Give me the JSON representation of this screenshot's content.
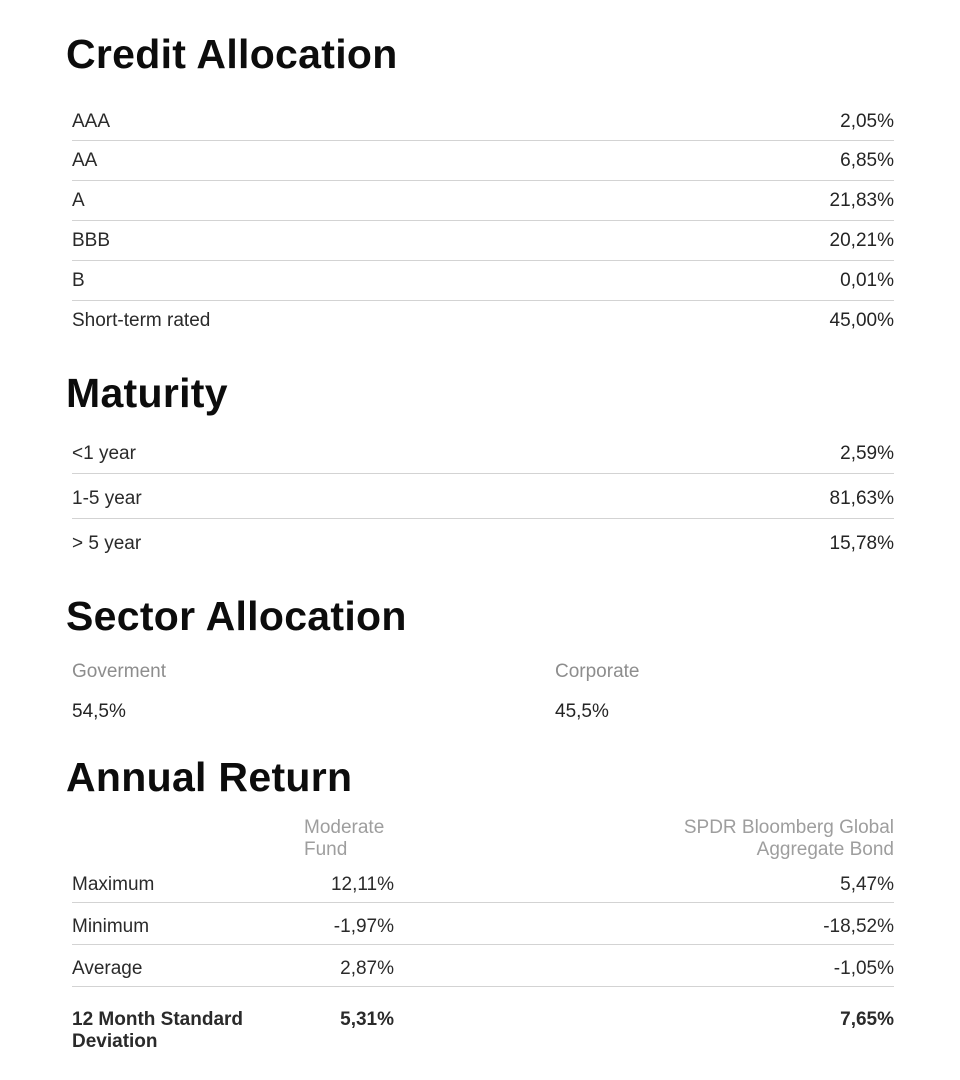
{
  "palette": {
    "background": "#ffffff",
    "heading_color": "#0c0c0c",
    "body_text_color": "#2a2a2a",
    "muted_label_color": "#8d8d8d",
    "table_header_color": "#9e9e9e",
    "divider_color": "#d3d3d3"
  },
  "sections": {
    "credit_allocation": {
      "title": "Credit Allocation",
      "rows": [
        {
          "label": "AAA",
          "value": "2,05%"
        },
        {
          "label": "AA",
          "value": "6,85%"
        },
        {
          "label": "A",
          "value": "21,83%"
        },
        {
          "label": "BBB",
          "value": "20,21%"
        },
        {
          "label": "B",
          "value": "0,01%"
        },
        {
          "label": "Short-term rated",
          "value": "45,00%"
        }
      ]
    },
    "maturity": {
      "title": "Maturity",
      "rows": [
        {
          "label": "<1 year",
          "value": "2,59%"
        },
        {
          "label": "1-5 year",
          "value": "81,63%"
        },
        {
          "label": "> 5 year",
          "value": "15,78%"
        }
      ]
    },
    "sector_allocation": {
      "title": "Sector Allocation",
      "items": [
        {
          "label": "Goverment",
          "value": "54,5%"
        },
        {
          "label": "Corporate",
          "value": "45,5%"
        }
      ]
    },
    "annual_return": {
      "title": "Annual Return",
      "columns": [
        "Moderate Fund",
        "SPDR Bloomberg Global Aggregate Bond"
      ],
      "rows": [
        {
          "label": "Maximum",
          "fund": "12,11%",
          "benchmark": "5,47%"
        },
        {
          "label": "Minimum",
          "fund": "-1,97%",
          "benchmark": "-18,52%"
        },
        {
          "label": "Average",
          "fund": "2,87%",
          "benchmark": "-1,05%"
        },
        {
          "label": "12 Month Standard Deviation",
          "fund": "5,31%",
          "benchmark": "7,65%"
        }
      ]
    }
  }
}
